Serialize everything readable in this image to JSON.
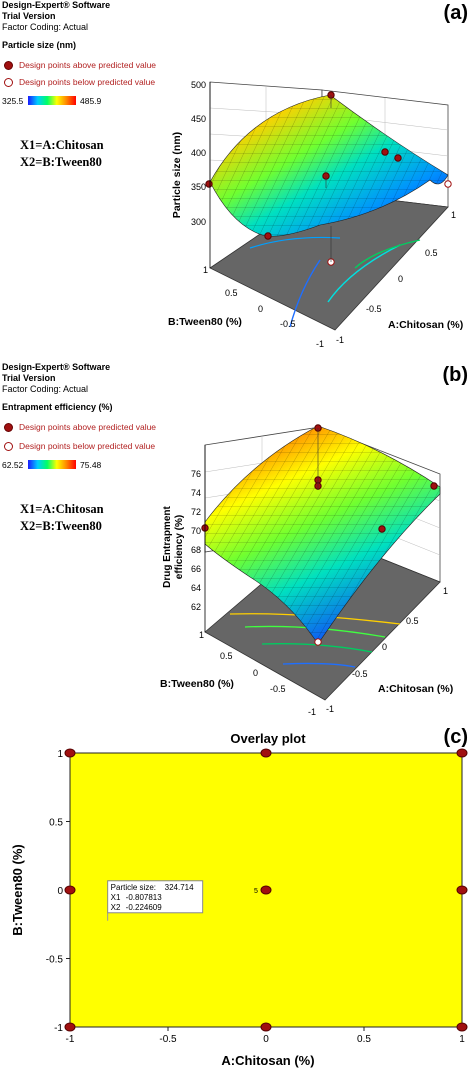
{
  "panel_a": {
    "label": "(a)",
    "software": "Design-Expert® Software",
    "version": "Trial Version",
    "coding": "Factor Coding: Actual",
    "response": "Particle size (nm)",
    "above": "Design points above predicted value",
    "below": "Design points below predicted value",
    "color_min": "325.5",
    "color_max": "485.9",
    "x1_def": "X1=A:Chitosan",
    "x2_def": "X2=B:Tween80",
    "zlabel": "Particle size (nm)",
    "zticks": [
      "500",
      "450",
      "400",
      "350",
      "300"
    ],
    "xlabel": "A:Chitosan (%)",
    "ylabel": "B:Tween80 (%)",
    "xticks": [
      "1",
      "0.5",
      "0",
      "-0.5",
      "-1"
    ],
    "yticks": [
      "1",
      "0.5",
      "0",
      "-0.5",
      "-1"
    ]
  },
  "panel_b": {
    "label": "(b)",
    "software": "Design-Expert® Software",
    "version": "Trial Version",
    "coding": "Factor Coding: Actual",
    "response": "Entrapment efficiency (%)",
    "above": "Design points above predicted value",
    "below": "Design points below predicted value",
    "color_min": "62.52",
    "color_max": "75.48",
    "x1_def": "X1=A:Chitosan",
    "x2_def": "X2=B:Tween80",
    "zlabel1": "Drug Entrapment",
    "zlabel2": "efficiency (%)",
    "zticks": [
      "76",
      "74",
      "72",
      "70",
      "68",
      "66",
      "64",
      "62"
    ],
    "xlabel": "A:Chitosan (%)",
    "ylabel": "B:Tween80 (%)",
    "xticks": [
      "1",
      "0.5",
      "0",
      "-0.5",
      "-1"
    ],
    "yticks": [
      "1",
      "0.5",
      "0",
      "-0.5",
      "-1"
    ]
  },
  "panel_c": {
    "label": "(c)",
    "title": "Overlay plot",
    "xlabel": "A:Chitosan (%)",
    "ylabel": "B:Tween80 (%)",
    "xticks": [
      "-1",
      "-0.5",
      "0",
      "0.5",
      "1"
    ],
    "yticks": [
      "1",
      "0.5",
      "0",
      "-0.5",
      "-1"
    ],
    "center_label": "5",
    "flag_line1_label": "Particle size:",
    "flag_line1_value": "324.714",
    "flag_line2_label": "X1",
    "flag_line2_value": "-0.807813",
    "flag_line3_label": "X2",
    "flag_line3_value": "-0.224609"
  },
  "colors": {
    "overlay_fill": "#ffff00",
    "design_point": "#a01010"
  },
  "chart_data": [
    {
      "type": "surface",
      "title": "",
      "zlabel": "Particle size (nm)",
      "xlabel": "A:Chitosan (%)",
      "ylabel": "B:Tween80 (%)",
      "xlim": [
        -1,
        1
      ],
      "ylim": [
        -1,
        1
      ],
      "zlim": [
        300,
        500
      ],
      "color_range": [
        325.5,
        485.9
      ]
    },
    {
      "type": "surface",
      "title": "",
      "zlabel": "Drug Entrapment efficiency (%)",
      "xlabel": "A:Chitosan (%)",
      "ylabel": "B:Tween80 (%)",
      "xlim": [
        -1,
        1
      ],
      "ylim": [
        -1,
        1
      ],
      "zlim": [
        62,
        76
      ],
      "color_range": [
        62.52,
        75.48
      ]
    },
    {
      "type": "scatter",
      "title": "Overlay plot",
      "xlabel": "A:Chitosan (%)",
      "ylabel": "B:Tween80 (%)",
      "xlim": [
        -1,
        1
      ],
      "ylim": [
        -1,
        1
      ],
      "points": [
        {
          "x": -1,
          "y": 1
        },
        {
          "x": 0,
          "y": 1
        },
        {
          "x": 1,
          "y": 1
        },
        {
          "x": -1,
          "y": 0
        },
        {
          "x": 0,
          "y": 0
        },
        {
          "x": 1,
          "y": 0
        },
        {
          "x": -1,
          "y": -1
        },
        {
          "x": 0,
          "y": -1
        },
        {
          "x": 1,
          "y": -1
        }
      ],
      "flag": {
        "x": -0.807813,
        "y": -0.224609,
        "particle_size": 324.714
      }
    }
  ]
}
